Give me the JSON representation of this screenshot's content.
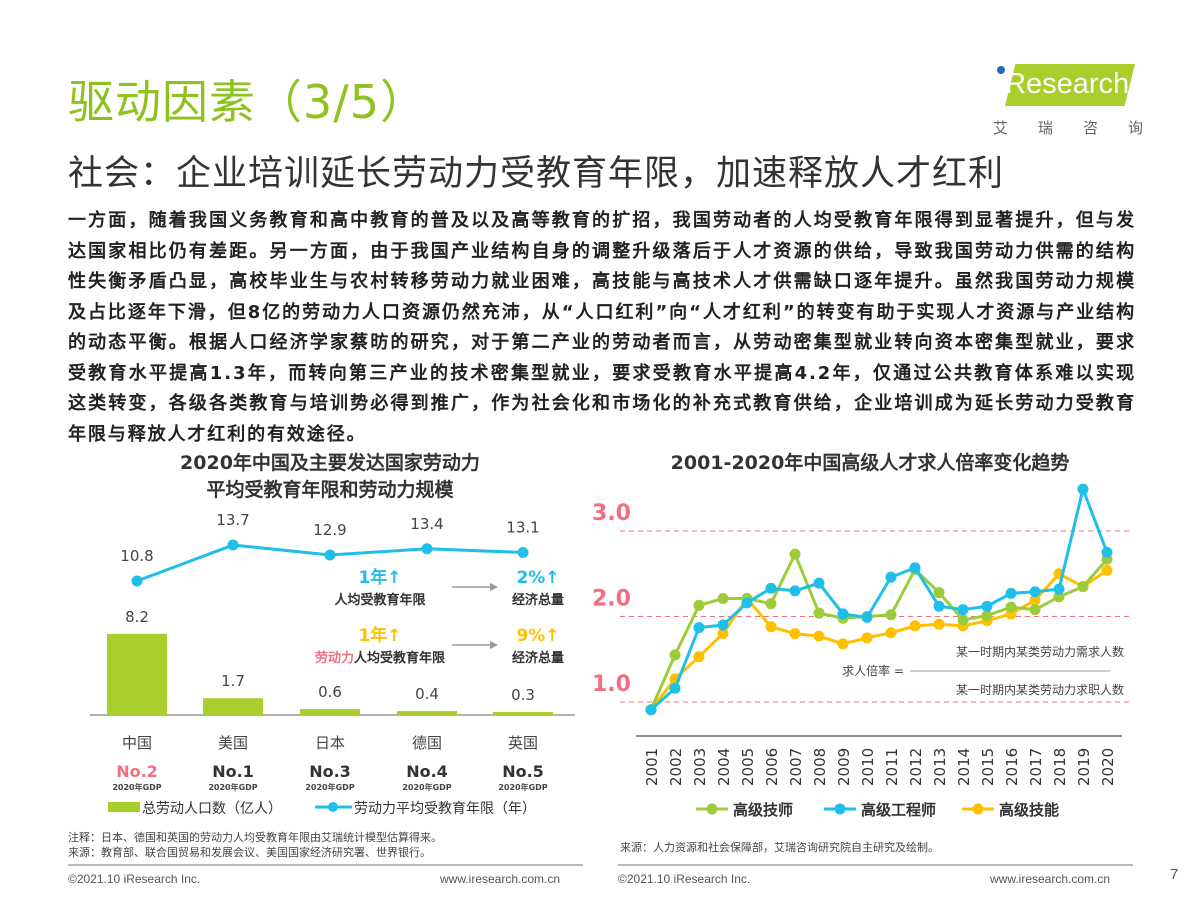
{
  "header": {
    "title": "驱动因素（3/5）",
    "subtitle": "社会：企业培训延长劳动力受教育年限，加速释放人才红利",
    "logo": {
      "word": "Research",
      "cn": [
        "艾",
        "瑞",
        "咨",
        "询"
      ],
      "brand_color": "#a8cf2c"
    }
  },
  "paragraph": "一方面，随着我国义务教育和高中教育的普及以及高等教育的扩招，我国劳动者的人均受教育年限得到显著提升，但与发达国家相比仍有差距。另一方面，由于我国产业结构自身的调整升级落后于人才资源的供给，导致我国劳动力供需的结构性失衡矛盾凸显，高校毕业生与农村转移劳动力就业困难，高技能与高技术人才供需缺口逐年提升。虽然我国劳动力规模及占比逐年下滑，但8亿的劳动力人口资源仍然充沛，从“人口红利”向“人才红利”的转变有助于实现人才资源与产业结构的动态平衡。根据人口经济学家蔡昉的研究，对于第二产业的劳动者而言，从劳动密集型就业转向资本密集型就业，要求受教育水平提高1.3年，而转向第三产业的技术密集型就业，要求受教育水平提高4.2年，仅通过公共教育体系难以实现这类转变，各级各类教育与培训势必得到推广，作为社会化和市场化的补充式教育供给，企业培训成为延长劳动力受教育年限与释放人才红利的有效途径。",
  "chart_data": [
    {
      "type": "bar+line",
      "title": "2020年中国及主要发达国家劳动力平均受教育年限和劳动力规模",
      "title_lines": [
        "2020年中国及主要发达国家劳动力",
        "平均受教育年限和劳动力规模"
      ],
      "categories": [
        "中国",
        "美国",
        "日本",
        "德国",
        "英国"
      ],
      "gdp_rank": [
        "No.2",
        "No.1",
        "No.3",
        "No.4",
        "No.5"
      ],
      "gdp_rank_caption": "2020年GDP",
      "series": [
        {
          "name": "总劳动人口数（亿人）",
          "type": "bar",
          "color": "#a8cf2c",
          "values": [
            8.2,
            1.7,
            0.6,
            0.4,
            0.3
          ]
        },
        {
          "name": "劳动力平均受教育年限（年）",
          "type": "line",
          "color": "#1fbfe8",
          "values": [
            10.8,
            13.7,
            12.9,
            13.4,
            13.1
          ]
        }
      ],
      "highlight_color": "#f07080",
      "annotations": [
        {
          "value": "1年↑",
          "label": "人均受教育年限",
          "result": "2%↑",
          "result_label": "经济总量",
          "color": "#1fbfe8"
        },
        {
          "value": "1年↑",
          "label_prefix": "劳动力",
          "label": "人均受教育年限",
          "result": "9%↑",
          "result_label": "经济总量",
          "color": "#ffc000"
        }
      ],
      "legend_position": "bottom"
    },
    {
      "type": "line",
      "title": "2001-2020年中国高级人才求人倍率变化趋势",
      "x": [
        "2001",
        "2002",
        "2003",
        "2004",
        "2005",
        "2006",
        "2007",
        "2008",
        "2009",
        "2010",
        "2011",
        "2012",
        "2013",
        "2014",
        "2015",
        "2016",
        "2017",
        "2018",
        "2019",
        "2020"
      ],
      "yticks": [
        "1.0",
        "2.0",
        "3.0"
      ],
      "ylim": [
        0.8,
        3.5
      ],
      "tick_color": "#f07080",
      "series": [
        {
          "name": "高级技师",
          "color": "#9ccc3a",
          "values": [
            0.91,
            1.55,
            2.13,
            2.21,
            2.21,
            2.15,
            2.73,
            2.04,
            1.98,
            2.0,
            2.02,
            2.55,
            2.28,
            1.96,
            2.01,
            2.11,
            2.08,
            2.23,
            2.35,
            2.67
          ]
        },
        {
          "name": "高级工程师",
          "color": "#1fbfe8",
          "values": [
            0.91,
            1.16,
            1.87,
            1.9,
            2.16,
            2.33,
            2.3,
            2.39,
            2.03,
            1.99,
            2.46,
            2.57,
            2.12,
            2.08,
            2.12,
            2.27,
            2.29,
            2.32,
            3.49,
            2.75
          ]
        },
        {
          "name": "高级技能",
          "color": "#ffc000",
          "values": [
            0.91,
            1.27,
            1.53,
            1.8,
            2.21,
            1.88,
            1.8,
            1.77,
            1.68,
            1.75,
            1.81,
            1.89,
            1.91,
            1.89,
            1.95,
            2.03,
            2.19,
            2.5,
            2.35,
            2.54
          ]
        }
      ],
      "formula": {
        "lhs": "求人倍率 =",
        "numerator": "某一时期内某类劳动力需求人数",
        "denominator": "某一时期内某类劳动力求职人数"
      },
      "legend_position": "bottom"
    }
  ],
  "notes": {
    "left": [
      "注释：日本、德国和英国的劳动力人均受教育年限由艾瑞统计模型估算得来。",
      "来源：教育部、联合国贸易和发展会议、美国国家经济研究署、世界银行。"
    ],
    "right": "来源：人力资源和社会保障部，艾瑞咨询研究院自主研究及绘制。"
  },
  "footer": {
    "copyright": "©2021.10 iResearch Inc.",
    "url": "www.iresearch.com.cn",
    "page": "7"
  }
}
